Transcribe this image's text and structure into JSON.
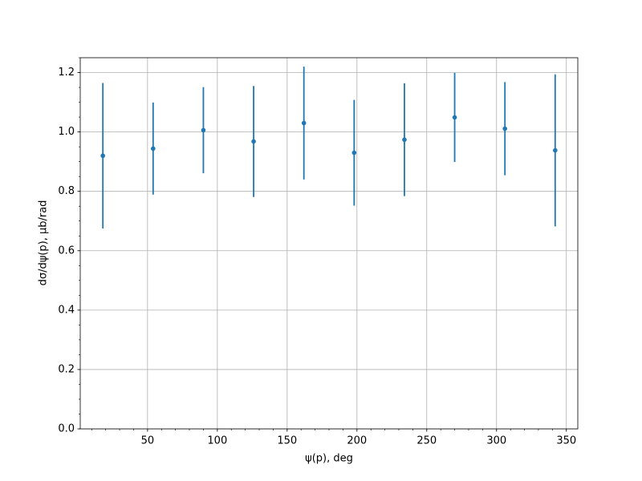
{
  "chart_data": {
    "type": "errorbar",
    "xlabel": "ψ(p), deg",
    "ylabel": "dσ/dψ(p), μb/rad",
    "x": [
      18,
      54,
      90,
      126,
      162,
      198,
      234,
      270,
      306,
      342
    ],
    "values": [
      0.92,
      0.944,
      1.006,
      0.968,
      1.03,
      0.93,
      0.974,
      1.049,
      1.011,
      0.938
    ],
    "errors": [
      0.245,
      0.155,
      0.145,
      0.187,
      0.19,
      0.178,
      0.19,
      0.15,
      0.157,
      0.256
    ],
    "color": "#1f77b4",
    "xlim": [
      1.8,
      358.2
    ],
    "ylim": [
      0,
      1.25
    ],
    "xticks": [
      50,
      100,
      150,
      200,
      250,
      300,
      350
    ],
    "yticks": [
      {
        "value": 0,
        "label": "0.0"
      },
      {
        "value": 0.2,
        "label": "0.2"
      },
      {
        "value": 0.4,
        "label": "0.4"
      },
      {
        "value": 0.6,
        "label": "0.6"
      },
      {
        "value": 0.8,
        "label": "0.8"
      },
      {
        "value": 1.0,
        "label": "1.0"
      },
      {
        "value": 1.2,
        "label": "1.2"
      }
    ],
    "grid": true,
    "minor_ticks": true
  }
}
